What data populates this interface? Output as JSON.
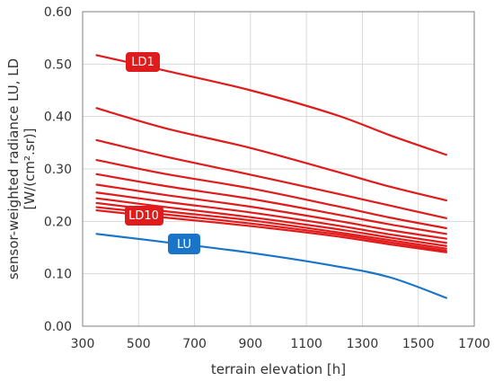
{
  "chart_data": {
    "type": "line",
    "xlabel": "terrain elevation [h]",
    "ylabel_line1": "sensor-weighted radiance  LU, LD",
    "ylabel_line2": "[W/(cm².sr)]",
    "xlim": [
      300,
      1700
    ],
    "ylim": [
      0,
      0.6
    ],
    "x_ticks": [
      300,
      500,
      700,
      900,
      1100,
      1300,
      1500,
      1700
    ],
    "y_ticks": [
      0.0,
      0.1,
      0.2,
      0.3,
      0.4,
      0.5,
      0.6
    ],
    "x_tick_labels": [
      "300",
      "500",
      "700",
      "900",
      "1100",
      "1300",
      "1500",
      "1700"
    ],
    "y_tick_labels": [
      "0.00",
      "0.10",
      "0.20",
      "0.30",
      "0.40",
      "0.50",
      "0.60"
    ],
    "grid": true,
    "x": [
      350,
      600,
      900,
      1200,
      1400,
      1600
    ],
    "series": [
      {
        "name": "LD1",
        "color": "#e01b1b",
        "values": [
          0.517,
          0.487,
          0.45,
          0.404,
          0.364,
          0.327
        ]
      },
      {
        "name": "",
        "color": "#e01b1b",
        "values": [
          0.416,
          0.377,
          0.34,
          0.296,
          0.266,
          0.24
        ]
      },
      {
        "name": "",
        "color": "#e01b1b",
        "values": [
          0.355,
          0.323,
          0.289,
          0.254,
          0.23,
          0.206
        ]
      },
      {
        "name": "",
        "color": "#e01b1b",
        "values": [
          0.317,
          0.29,
          0.263,
          0.23,
          0.207,
          0.187
        ]
      },
      {
        "name": "",
        "color": "#e01b1b",
        "values": [
          0.29,
          0.267,
          0.243,
          0.214,
          0.194,
          0.176
        ]
      },
      {
        "name": "",
        "color": "#e01b1b",
        "values": [
          0.27,
          0.25,
          0.228,
          0.202,
          0.183,
          0.167
        ]
      },
      {
        "name": "",
        "color": "#e01b1b",
        "values": [
          0.255,
          0.237,
          0.217,
          0.193,
          0.175,
          0.159
        ]
      },
      {
        "name": "",
        "color": "#e01b1b",
        "values": [
          0.244,
          0.227,
          0.208,
          0.186,
          0.169,
          0.153
        ]
      },
      {
        "name": "",
        "color": "#e01b1b",
        "values": [
          0.235,
          0.219,
          0.202,
          0.18,
          0.164,
          0.148
        ]
      },
      {
        "name": "",
        "color": "#e01b1b",
        "values": [
          0.227,
          0.213,
          0.196,
          0.176,
          0.16,
          0.144
        ]
      },
      {
        "name": "LD10",
        "color": "#e01b1b",
        "values": [
          0.221,
          0.207,
          0.191,
          0.172,
          0.156,
          0.141
        ]
      },
      {
        "name": "LU",
        "color": "#1a75c9",
        "values": [
          0.176,
          0.16,
          0.14,
          0.115,
          0.093,
          0.054
        ]
      }
    ],
    "annotations": [
      {
        "text": "LD1",
        "color": "#e01b1b"
      },
      {
        "text": "LD10",
        "color": "#e01b1b"
      },
      {
        "text": "LU",
        "color": "#1a75c9"
      }
    ]
  }
}
